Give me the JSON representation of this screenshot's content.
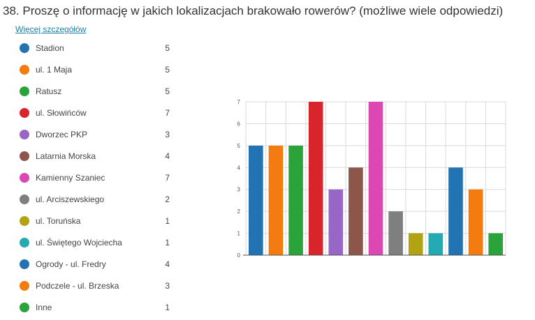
{
  "question": {
    "title": "38.  Proszę o informację w jakich lokalizacjach brakowało rowerów? (możliwe wiele odpowiedzi)",
    "details_link": "Więcej szczegółów"
  },
  "legend": [
    {
      "label": "Stadion",
      "count": "5",
      "color": "#2173b3"
    },
    {
      "label": "ul. 1 Maja",
      "count": "5",
      "color": "#f47b0f"
    },
    {
      "label": "Ratusz",
      "count": "5",
      "color": "#2aa33a"
    },
    {
      "label": "ul. Słowińców",
      "count": "7",
      "color": "#d8242b"
    },
    {
      "label": "Dworzec PKP",
      "count": "3",
      "color": "#9866c6"
    },
    {
      "label": "Latarnia Morska",
      "count": "4",
      "color": "#8c564b"
    },
    {
      "label": "Kamienny Szaniec",
      "count": "7",
      "color": "#dc47b3"
    },
    {
      "label": "ul. Arciszewskiego",
      "count": "2",
      "color": "#7f7f7f"
    },
    {
      "label": "ul. Toruńska",
      "count": "1",
      "color": "#b2a313"
    },
    {
      "label": "ul. Świętego Wojciecha",
      "count": "1",
      "color": "#23aab3"
    },
    {
      "label": "Ogrody - ul. Fredry",
      "count": "4",
      "color": "#2173b3"
    },
    {
      "label": "Podczele - ul. Brzeska",
      "count": "3",
      "color": "#f47b0f"
    },
    {
      "label": "Inne",
      "count": "1",
      "color": "#2aa33a"
    }
  ],
  "chart_data": {
    "type": "bar",
    "categories": [
      "Stadion",
      "ul. 1 Maja",
      "Ratusz",
      "ul. Słowińców",
      "Dworzec PKP",
      "Latarnia Morska",
      "Kamienny Szaniec",
      "ul. Arciszewskiego",
      "ul. Toruńska",
      "ul. Świętego Wojciecha",
      "Ogrody - ul. Fredry",
      "Podczele - ul. Brzeska",
      "Inne"
    ],
    "values": [
      5,
      5,
      5,
      7,
      3,
      4,
      7,
      2,
      1,
      1,
      4,
      3,
      1
    ],
    "colors": [
      "#2173b3",
      "#f47b0f",
      "#2aa33a",
      "#d8242b",
      "#9866c6",
      "#8c564b",
      "#dc47b3",
      "#7f7f7f",
      "#b2a313",
      "#23aab3",
      "#2173b3",
      "#f47b0f",
      "#2aa33a"
    ],
    "yticks": [
      0,
      1,
      2,
      3,
      4,
      5,
      6,
      7
    ],
    "ylim": [
      0,
      7
    ],
    "grid": true,
    "legend_position": "left"
  }
}
